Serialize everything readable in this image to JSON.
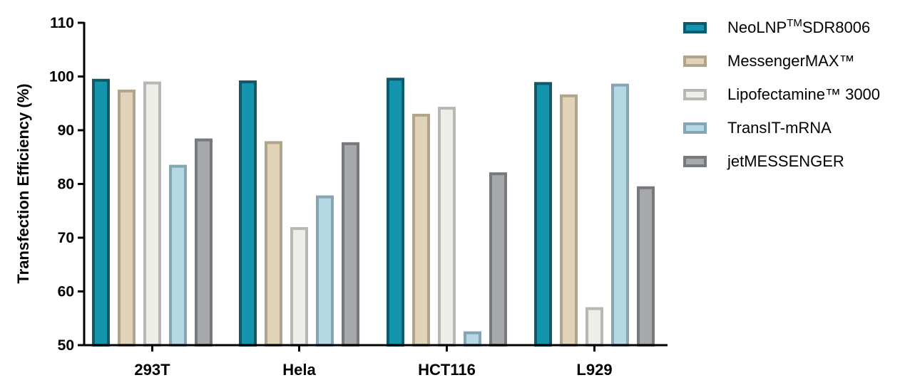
{
  "chart_data": {
    "type": "bar",
    "title": "",
    "xlabel": "",
    "ylabel": "Transfection Efficiency (%)",
    "ylim": [
      50,
      110
    ],
    "yticks": [
      50,
      60,
      70,
      80,
      90,
      100,
      110
    ],
    "categories": [
      "293T",
      "Hela",
      "HCT116",
      "L929"
    ],
    "grid": false,
    "legend_position": "right",
    "series": [
      {
        "name": "NeoLNP™SDR8006",
        "name_parts": {
          "pre": "NeoLNP",
          "sup": "TM",
          "post": "SDR8006"
        },
        "fill": "#1295ad",
        "stroke": "#0c5a6c",
        "values": [
          99.3,
          99.0,
          99.5,
          98.7
        ]
      },
      {
        "name": "MessengerMAX™",
        "fill": "#e0d3b8",
        "stroke": "#b0a48a",
        "values": [
          97.3,
          87.7,
          92.8,
          96.4
        ]
      },
      {
        "name": "Lipofectamine™ 3000",
        "fill": "#efede8",
        "stroke": "#b7b7b3",
        "values": [
          98.8,
          71.7,
          94.1,
          56.8
        ]
      },
      {
        "name": "TransIT-mRNA",
        "fill": "#b5d8e4",
        "stroke": "#84a6b3",
        "values": [
          83.3,
          77.6,
          52.3,
          98.4
        ]
      },
      {
        "name": "jetMESSENGER",
        "fill": "#a6a8ab",
        "stroke": "#777a7c",
        "values": [
          88.2,
          87.5,
          81.9,
          79.3
        ]
      }
    ]
  }
}
